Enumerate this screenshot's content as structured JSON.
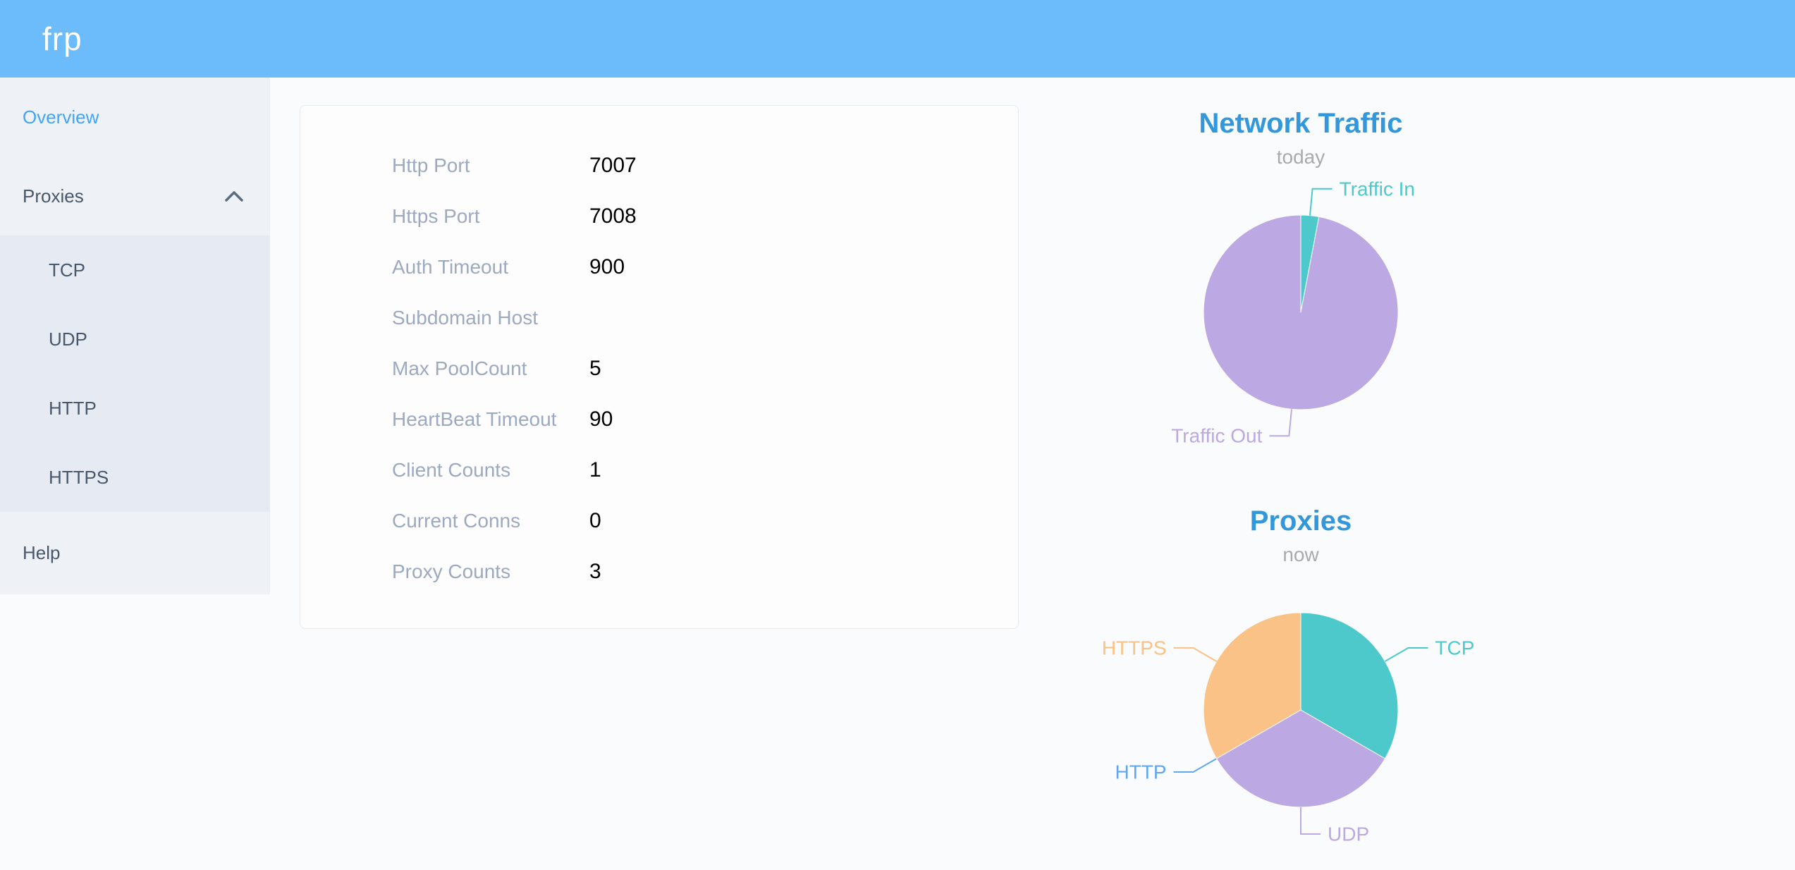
{
  "header": {
    "logo": "frp"
  },
  "sidebar": {
    "overview_label": "Overview",
    "proxies_label": "Proxies",
    "help_label": "Help",
    "proxy_types": [
      {
        "label": "TCP"
      },
      {
        "label": "UDP"
      },
      {
        "label": "HTTP"
      },
      {
        "label": "HTTPS"
      }
    ],
    "active_item": "Overview",
    "proxies_expanded": true
  },
  "config": {
    "rows": [
      {
        "label": "Http Port",
        "value": "7007"
      },
      {
        "label": "Https Port",
        "value": "7008"
      },
      {
        "label": "Auth Timeout",
        "value": "900"
      },
      {
        "label": "Subdomain Host",
        "value": ""
      },
      {
        "label": "Max PoolCount",
        "value": "5"
      },
      {
        "label": "HeartBeat Timeout",
        "value": "90"
      },
      {
        "label": "Client Counts",
        "value": "1"
      },
      {
        "label": "Current Conns",
        "value": "0"
      },
      {
        "label": "Proxy Counts",
        "value": "3"
      }
    ]
  },
  "chart_data": [
    {
      "type": "pie",
      "title": "Network Traffic",
      "subtitle": "today",
      "start_angle_deg": 0,
      "direction": "clockwise-from-top",
      "label_position": "outside",
      "series": [
        {
          "name": "Traffic In",
          "value": 3,
          "color": "#4dc9cc"
        },
        {
          "name": "Traffic Out",
          "value": 97,
          "color": "#bca8e2"
        }
      ]
    },
    {
      "type": "pie",
      "title": "Proxies",
      "subtitle": "now",
      "start_angle_deg": 0,
      "direction": "clockwise-from-top",
      "label_position": "outside",
      "series": [
        {
          "name": "TCP",
          "value": 1,
          "color": "#4dc9cc"
        },
        {
          "name": "UDP",
          "value": 1,
          "color": "#bca8e2"
        },
        {
          "name": "HTTP",
          "value": 0,
          "color": "#5fa8ee"
        },
        {
          "name": "HTTPS",
          "value": 1,
          "color": "#fac287"
        }
      ]
    }
  ],
  "colors": {
    "header_bg": "#6cbcfc",
    "logo_text": "#ffffff",
    "sidebar_bg": "#eef1f6",
    "submenu_bg": "#e6eaf2",
    "sidebar_text": "#48576a",
    "active_link": "#42a5f8",
    "page_bg": "#fafbfc",
    "card_bg": "#fdfdfe",
    "card_border": "#e8ebf4",
    "config_label": "#9da9be",
    "config_value": "#000000",
    "chart_title": "#3398db",
    "chart_subtitle": "#aaaaaa",
    "teal": "#4dc9cc",
    "purple": "#bca8e2",
    "orange": "#fac287",
    "http_blue": "#5fa8ee"
  }
}
